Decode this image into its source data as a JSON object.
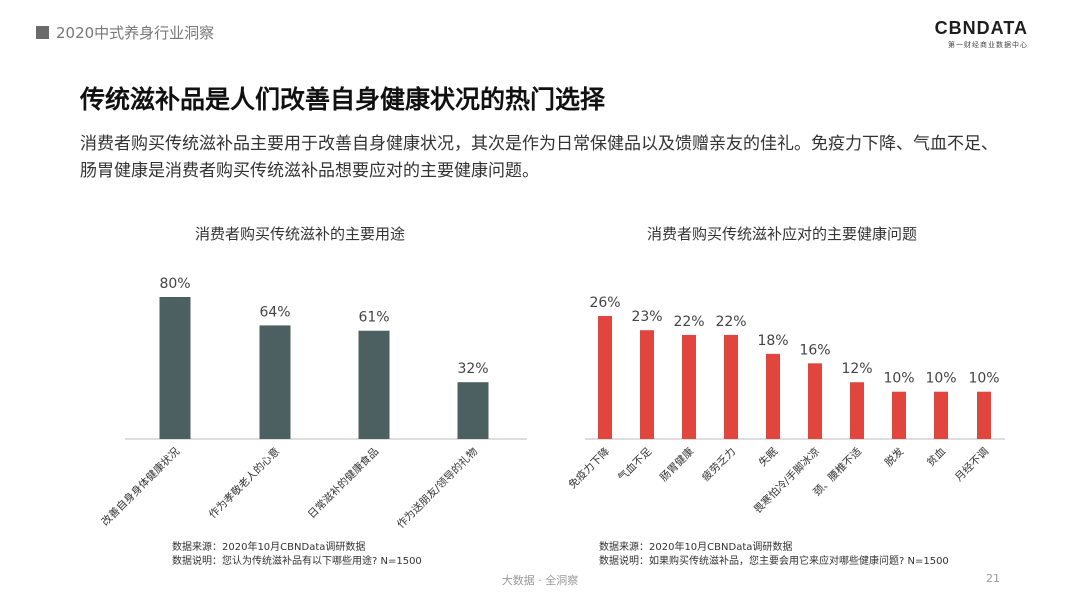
{
  "header": {
    "report_title": "2020中式养身行业洞察"
  },
  "logo": {
    "main": "CBNDATA",
    "sub": "第一财经商业数据中心"
  },
  "page": {
    "title": "传统滋补品是人们改善自身健康状况的热门选择",
    "description": "消费者购买传统滋补品主要用于改善自身健康状况，其次是作为日常保健品以及馈赠亲友的佳礼。免疫力下降、气血不足、肠胃健康是消费者购买传统滋补品想要应对的主要健康问题。"
  },
  "colors": {
    "left_bar": "#4d6061",
    "right_bar": "#e0463e",
    "axis": "#bdbdbd"
  },
  "chart_data": [
    {
      "type": "bar",
      "title": "消费者购买传统滋补的主要用途",
      "categories": [
        "改善自身身体健康状况",
        "作为孝敬老人的心意",
        "日常滋补的健康食品",
        "作为送朋友/领导的礼物"
      ],
      "values": [
        80,
        64,
        61,
        32
      ],
      "unit": "%",
      "ylim": [
        0,
        100
      ]
    },
    {
      "type": "bar",
      "title": "消费者购买传统滋补应对的主要健康问题",
      "categories": [
        "免疫力下降",
        "气血不足",
        "肠胃健康",
        "疲劳乏力",
        "失眠",
        "畏寒怕冷/手脚冰凉",
        "颈、腰椎不适",
        "脱发",
        "贫血",
        "月经不调"
      ],
      "values": [
        26,
        23,
        22,
        22,
        18,
        16,
        12,
        10,
        10,
        10
      ],
      "unit": "%",
      "ylim": [
        0,
        30
      ]
    }
  ],
  "notes": {
    "left": {
      "source": "数据来源：2020年10月CBNData调研数据",
      "explain": "数据说明：您认为传统滋补品有以下哪些用途? N=1500"
    },
    "right": {
      "source": "数据来源：2020年10月CBNData调研数据",
      "explain": "数据说明：如果购买传统滋补品，您主要会用它来应对哪些健康问题? N=1500"
    }
  },
  "footer": {
    "slogan": "大数据 · 全洞察",
    "page_number": "21"
  }
}
